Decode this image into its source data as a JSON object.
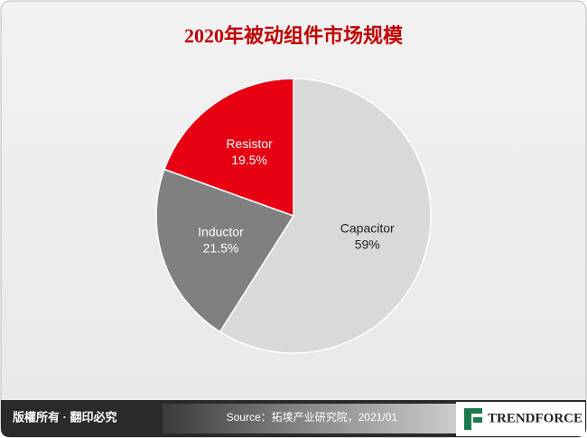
{
  "chart_data": {
    "type": "pie",
    "title": "2020年被动组件市场规模",
    "categories": [
      "Capacitor",
      "Inductor",
      "Resistor"
    ],
    "values": [
      59,
      21.5,
      19.5
    ],
    "value_labels": [
      "59%",
      "21.5%",
      "19.5%"
    ],
    "colors": [
      "#d9d9d9",
      "#808080",
      "#e60012"
    ],
    "label_colors": [
      "#222222",
      "#ffffff",
      "#ffffff"
    ]
  },
  "footer": {
    "copyright": "版權所有 · 翻印必究",
    "source": "Source：拓墣产业研究院，2021/01",
    "logo": "TRENDFORCE"
  }
}
